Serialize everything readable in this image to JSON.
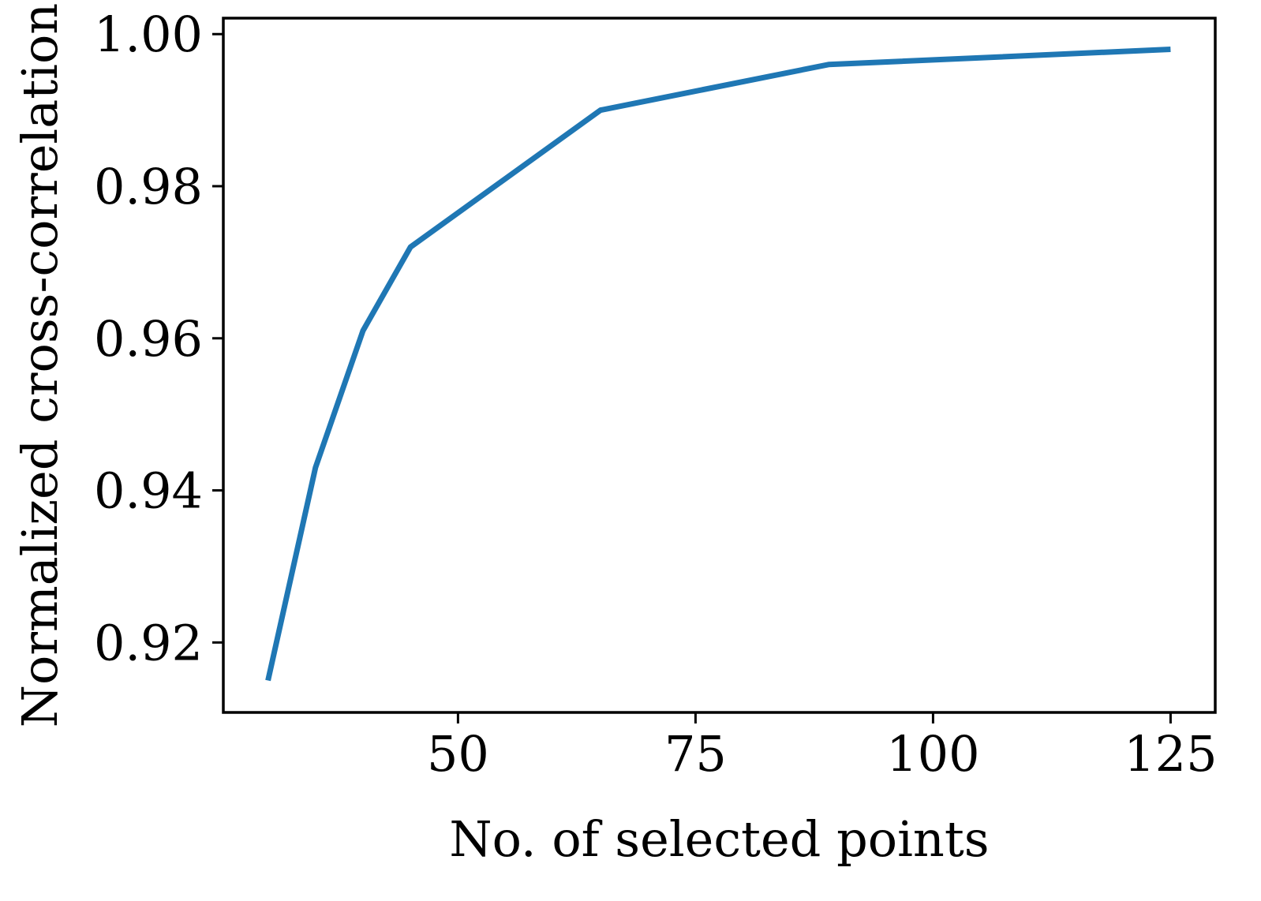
{
  "chart_data": {
    "type": "line",
    "title": "",
    "xlabel": "No. of selected points",
    "ylabel": "Normalized cross-correlation",
    "xlim": [
      25.3,
      129.7
    ],
    "ylim": [
      0.9108,
      1.0021
    ],
    "xticks": [
      50,
      75,
      100,
      125
    ],
    "xtick_labels": [
      "50",
      "75",
      "100",
      "125"
    ],
    "yticks": [
      0.92,
      0.94,
      0.96,
      0.98,
      1.0
    ],
    "ytick_labels": [
      "0.92",
      "0.94",
      "0.96",
      "0.98",
      "1.00"
    ],
    "grid": false,
    "legend": "none",
    "colors": {
      "series": "#1f77b4",
      "axes": "#000000"
    },
    "series": [
      {
        "x": [
          30,
          35,
          40,
          45,
          65,
          89,
          125
        ],
        "values": [
          0.915,
          0.943,
          0.961,
          0.972,
          0.99,
          0.996,
          0.998
        ]
      }
    ]
  }
}
